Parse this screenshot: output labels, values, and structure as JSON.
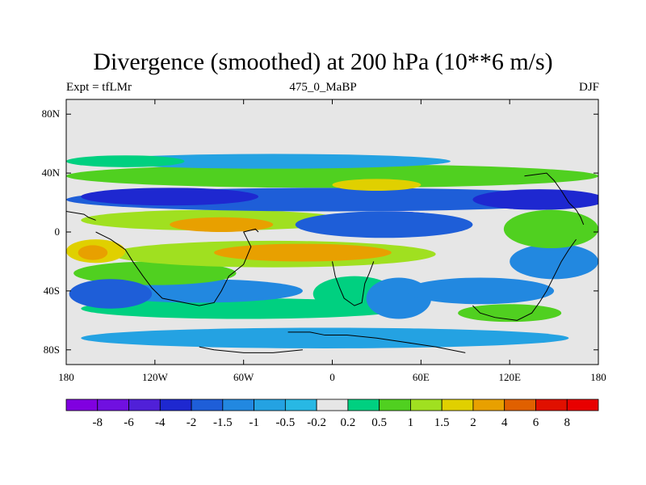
{
  "chart_data": {
    "type": "heatmap",
    "title": "Divergence (smoothed) at 200 hPa (10**6 m/s)",
    "left_string": "Expt = tfLMr",
    "center_string": "475_0_MaBP",
    "right_string": "DJF",
    "x_range": [
      -180,
      180
    ],
    "y_range": [
      -90,
      90
    ],
    "x_ticks": [
      {
        "value": -180,
        "label": "180"
      },
      {
        "value": -120,
        "label": "120W"
      },
      {
        "value": -60,
        "label": "60W"
      },
      {
        "value": 0,
        "label": "0"
      },
      {
        "value": 60,
        "label": "60E"
      },
      {
        "value": 120,
        "label": "120E"
      },
      {
        "value": 180,
        "label": "180"
      }
    ],
    "y_ticks": [
      {
        "value": 80,
        "label": "80N"
      },
      {
        "value": 40,
        "label": "40N"
      },
      {
        "value": 0,
        "label": "0"
      },
      {
        "value": -40,
        "label": "40S"
      },
      {
        "value": -80,
        "label": "80S"
      }
    ],
    "colorbar": {
      "levels": [
        "-8",
        "-6",
        "-4",
        "-2",
        "-1.5",
        "-1",
        "-0.5",
        "-0.2",
        "0.2",
        "0.5",
        "1",
        "1.5",
        "2",
        "4",
        "6",
        "8"
      ],
      "colors": [
        "#8000e0",
        "#7010e0",
        "#5020d8",
        "#1e28d0",
        "#1e5ed8",
        "#2288e0",
        "#24a2e2",
        "#28b8e4",
        "#e6e6e6",
        "#00d080",
        "#50d020",
        "#a0e020",
        "#e0d000",
        "#e8a000",
        "#e06000",
        "#e01000",
        "#e80000"
      ]
    },
    "features": [
      {
        "name": "southern-high-latitude-negative-band",
        "level_index": 6,
        "lon": -5,
        "lat": -72,
        "rx": 165,
        "ry": 7
      },
      {
        "name": "southern-high-latitude-positive-band",
        "level_index": 9,
        "lon": -60,
        "lat": -52,
        "rx": 110,
        "ry": 7
      },
      {
        "name": "southern-mid-latitude-negative",
        "level_index": 5,
        "lon": -90,
        "lat": -40,
        "rx": 70,
        "ry": 8
      },
      {
        "name": "southern-subtropical-positive",
        "level_index": 10,
        "lon": -120,
        "lat": -28,
        "rx": 55,
        "ry": 8
      },
      {
        "name": "south-pacific-negative",
        "level_index": 4,
        "lon": -150,
        "lat": -42,
        "rx": 28,
        "ry": 10
      },
      {
        "name": "south-atlantic-positive",
        "level_index": 9,
        "lon": 15,
        "lat": -42,
        "rx": 28,
        "ry": 12
      },
      {
        "name": "south-africa-negative",
        "level_index": 5,
        "lon": 45,
        "lat": -45,
        "rx": 22,
        "ry": 14
      },
      {
        "name": "indian-ocean-south-negative",
        "level_index": 5,
        "lon": 100,
        "lat": -40,
        "rx": 50,
        "ry": 9
      },
      {
        "name": "indian-ocean-south-positive",
        "level_index": 10,
        "lon": 120,
        "lat": -55,
        "rx": 35,
        "ry": 6
      },
      {
        "name": "southern-tropical-positive-band",
        "level_index": 11,
        "lon": -40,
        "lat": -15,
        "rx": 110,
        "ry": 9
      },
      {
        "name": "southern-tropical-strong-positive",
        "level_index": 13,
        "lon": -20,
        "lat": -14,
        "rx": 60,
        "ry": 6
      },
      {
        "name": "south-america-positive",
        "level_index": 12,
        "lon": -160,
        "lat": -13,
        "rx": 20,
        "ry": 8
      },
      {
        "name": "south-america-strong-positive",
        "level_index": 13,
        "lon": -162,
        "lat": -14,
        "rx": 10,
        "ry": 5
      },
      {
        "name": "west-pacific-negative",
        "level_index": 5,
        "lon": 150,
        "lat": -20,
        "rx": 30,
        "ry": 12
      },
      {
        "name": "equatorial-positive-band",
        "level_index": 11,
        "lon": -80,
        "lat": 8,
        "rx": 90,
        "ry": 7
      },
      {
        "name": "equatorial-strong-positive",
        "level_index": 13,
        "lon": -75,
        "lat": 5,
        "rx": 35,
        "ry": 5
      },
      {
        "name": "east-africa-strong-negative",
        "level_index": 2,
        "lon": 40,
        "lat": 8,
        "rx": 40,
        "ry": 6
      },
      {
        "name": "east-africa-negative",
        "level_index": 4,
        "lon": 35,
        "lat": 5,
        "rx": 60,
        "ry": 9
      },
      {
        "name": "maritime-continent-strong-positive",
        "level_index": 14,
        "lon": 155,
        "lat": 1,
        "rx": 15,
        "ry": 6
      },
      {
        "name": "maritime-continent-positive",
        "level_index": 13,
        "lon": 150,
        "lat": 0,
        "rx": 25,
        "ry": 10
      },
      {
        "name": "maritime-continent-green",
        "level_index": 10,
        "lon": 148,
        "lat": 2,
        "rx": 32,
        "ry": 13
      },
      {
        "name": "northern-subtropical-negative-band",
        "level_index": 4,
        "lon": 0,
        "lat": 22,
        "rx": 180,
        "ry": 8
      },
      {
        "name": "northern-subtropical-strong-negative",
        "level_index": 3,
        "lon": -110,
        "lat": 24,
        "rx": 60,
        "ry": 6
      },
      {
        "name": "asia-strong-negative",
        "level_index": 3,
        "lon": 140,
        "lat": 22,
        "rx": 45,
        "ry": 7
      },
      {
        "name": "northern-mid-latitude-positive-band",
        "level_index": 10,
        "lon": 0,
        "lat": 38,
        "rx": 180,
        "ry": 8
      },
      {
        "name": "north-atlantic-strong-positive",
        "level_index": 12,
        "lon": 30,
        "lat": 32,
        "rx": 30,
        "ry": 4
      },
      {
        "name": "northern-high-latitude-negative",
        "level_index": 6,
        "lon": -40,
        "lat": 48,
        "rx": 120,
        "ry": 5
      },
      {
        "name": "northern-high-latitude-positive",
        "level_index": 9,
        "lon": -140,
        "lat": 48,
        "rx": 40,
        "ry": 4
      }
    ],
    "coastlines": [
      {
        "name": "north-america-coast",
        "points": [
          [
            -180,
            14
          ],
          [
            -168,
            12
          ],
          [
            -165,
            10
          ],
          [
            -160,
            8
          ]
        ]
      },
      {
        "name": "south-america-coast",
        "points": [
          [
            -160,
            0
          ],
          [
            -150,
            -5
          ],
          [
            -140,
            -12
          ],
          [
            -135,
            -20
          ],
          [
            -128,
            -30
          ],
          [
            -122,
            -38
          ],
          [
            -115,
            -45
          ],
          [
            -100,
            -48
          ],
          [
            -90,
            -50
          ],
          [
            -80,
            -48
          ],
          [
            -75,
            -40
          ],
          [
            -70,
            -30
          ],
          [
            -60,
            -22
          ],
          [
            -55,
            -10
          ],
          [
            -60,
            0
          ],
          [
            -52,
            2
          ],
          [
            -50,
            0
          ]
        ]
      },
      {
        "name": "africa-coast",
        "points": [
          [
            0,
            -20
          ],
          [
            2,
            -30
          ],
          [
            5,
            -38
          ],
          [
            8,
            -45
          ],
          [
            15,
            -50
          ],
          [
            20,
            -48
          ],
          [
            22,
            -35
          ],
          [
            25,
            -28
          ],
          [
            28,
            -20
          ]
        ]
      },
      {
        "name": "antarctica-coast",
        "points": [
          [
            -30,
            -68
          ],
          [
            -15,
            -68
          ],
          [
            -5,
            -70
          ],
          [
            10,
            -70
          ],
          [
            30,
            -72
          ],
          [
            50,
            -75
          ],
          [
            70,
            -78
          ],
          [
            90,
            -82
          ]
        ]
      },
      {
        "name": "asia-coast",
        "points": [
          [
            130,
            38
          ],
          [
            145,
            40
          ],
          [
            150,
            35
          ],
          [
            155,
            28
          ],
          [
            160,
            20
          ],
          [
            165,
            15
          ],
          [
            168,
            10
          ],
          [
            170,
            5
          ]
        ]
      },
      {
        "name": "australia-coast",
        "points": [
          [
            95,
            -50
          ],
          [
            100,
            -55
          ],
          [
            110,
            -58
          ],
          [
            125,
            -60
          ],
          [
            135,
            -55
          ],
          [
            140,
            -48
          ],
          [
            145,
            -40
          ],
          [
            150,
            -30
          ],
          [
            155,
            -20
          ],
          [
            160,
            -12
          ],
          [
            165,
            -5
          ]
        ]
      },
      {
        "name": "antarctica-peninsula",
        "points": [
          [
            -90,
            -78
          ],
          [
            -80,
            -80
          ],
          [
            -60,
            -82
          ],
          [
            -40,
            -82
          ],
          [
            -20,
            -80
          ]
        ]
      }
    ]
  }
}
